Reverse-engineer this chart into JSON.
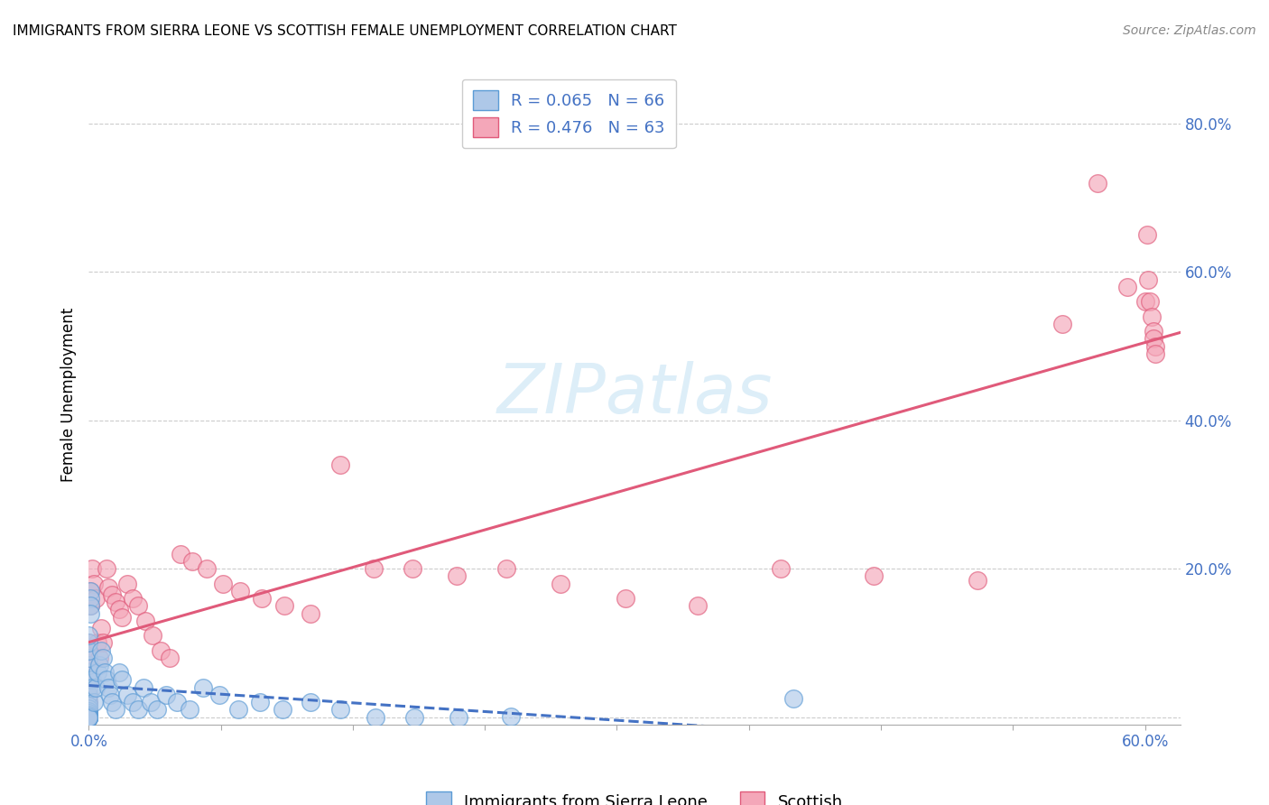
{
  "title": "IMMIGRANTS FROM SIERRA LEONE VS SCOTTISH FEMALE UNEMPLOYMENT CORRELATION CHART",
  "source": "Source: ZipAtlas.com",
  "ylabel": "Female Unemployment",
  "legend_label1": "Immigrants from Sierra Leone",
  "legend_label2": "Scottish",
  "legend_R1": "R = 0.065",
  "legend_N1": "N = 66",
  "legend_R2": "R = 0.476",
  "legend_N2": "N = 63",
  "color_blue_fill": "#aec8e8",
  "color_blue_edge": "#5b9bd5",
  "color_pink_fill": "#f4a7b9",
  "color_pink_edge": "#e05a7a",
  "color_blue_trend": "#4472c4",
  "color_pink_trend": "#e05a7a",
  "watermark_color": "#ddeef8",
  "background_color": "#ffffff",
  "blue_scatter_x": [
    0.0,
    0.0,
    0.0,
    0.0,
    0.0,
    0.0,
    0.0,
    0.0,
    0.0,
    0.0,
    0.0,
    0.0,
    0.0,
    0.0,
    0.0,
    0.0,
    0.0,
    0.0,
    0.0,
    0.0,
    0.0,
    0.0,
    0.0,
    0.0,
    0.0,
    0.001,
    0.001,
    0.001,
    0.001,
    0.002,
    0.002,
    0.003,
    0.004,
    0.005,
    0.006,
    0.007,
    0.008,
    0.009,
    0.01,
    0.011,
    0.012,
    0.013,
    0.015,
    0.017,
    0.019,
    0.022,
    0.025,
    0.028,
    0.031,
    0.035,
    0.039,
    0.044,
    0.05,
    0.057,
    0.065,
    0.074,
    0.085,
    0.097,
    0.11,
    0.126,
    0.143,
    0.163,
    0.185,
    0.21,
    0.24,
    0.4
  ],
  "blue_scatter_y": [
    0.02,
    0.03,
    0.04,
    0.05,
    0.06,
    0.07,
    0.08,
    0.09,
    0.1,
    0.11,
    0.015,
    0.012,
    0.008,
    0.005,
    0.003,
    0.002,
    0.001,
    0.0,
    0.0,
    0.0,
    0.0,
    0.0,
    0.0,
    0.0,
    0.0,
    0.17,
    0.16,
    0.15,
    0.14,
    0.05,
    0.04,
    0.02,
    0.04,
    0.06,
    0.07,
    0.09,
    0.08,
    0.06,
    0.05,
    0.04,
    0.03,
    0.02,
    0.01,
    0.06,
    0.05,
    0.03,
    0.02,
    0.01,
    0.04,
    0.02,
    0.01,
    0.03,
    0.02,
    0.01,
    0.04,
    0.03,
    0.01,
    0.02,
    0.01,
    0.02,
    0.01,
    0.0,
    0.0,
    0.0,
    0.001,
    0.025
  ],
  "pink_scatter_x": [
    0.0,
    0.0,
    0.0,
    0.0,
    0.0,
    0.0,
    0.0,
    0.0,
    0.0,
    0.0,
    0.001,
    0.001,
    0.002,
    0.003,
    0.004,
    0.005,
    0.006,
    0.007,
    0.008,
    0.01,
    0.011,
    0.013,
    0.015,
    0.017,
    0.019,
    0.022,
    0.025,
    0.028,
    0.032,
    0.036,
    0.041,
    0.046,
    0.052,
    0.059,
    0.067,
    0.076,
    0.086,
    0.098,
    0.111,
    0.126,
    0.143,
    0.162,
    0.184,
    0.209,
    0.237,
    0.268,
    0.305,
    0.346,
    0.393,
    0.446,
    0.505,
    0.553,
    0.573,
    0.59,
    0.6,
    0.601,
    0.602,
    0.603,
    0.604,
    0.605,
    0.605,
    0.606,
    0.606
  ],
  "pink_scatter_y": [
    0.03,
    0.05,
    0.06,
    0.07,
    0.08,
    0.09,
    0.1,
    0.02,
    0.01,
    0.0,
    0.15,
    0.17,
    0.2,
    0.18,
    0.16,
    0.1,
    0.08,
    0.12,
    0.1,
    0.2,
    0.175,
    0.165,
    0.155,
    0.145,
    0.135,
    0.18,
    0.16,
    0.15,
    0.13,
    0.11,
    0.09,
    0.08,
    0.22,
    0.21,
    0.2,
    0.18,
    0.17,
    0.16,
    0.15,
    0.14,
    0.34,
    0.2,
    0.2,
    0.19,
    0.2,
    0.18,
    0.16,
    0.15,
    0.2,
    0.19,
    0.185,
    0.53,
    0.72,
    0.58,
    0.56,
    0.65,
    0.59,
    0.56,
    0.54,
    0.52,
    0.51,
    0.5,
    0.49
  ],
  "xlim": [
    0.0,
    0.62
  ],
  "ylim": [
    -0.01,
    0.88
  ],
  "right_yticks": [
    0.0,
    0.2,
    0.4,
    0.6,
    0.8
  ],
  "right_ylabels": [
    "",
    "20.0%",
    "40.0%",
    "60.0%",
    "80.0%"
  ],
  "x_ticks_shown": [
    0.0,
    0.6
  ],
  "x_tick_labels_shown": [
    "0.0%",
    "60.0%"
  ]
}
